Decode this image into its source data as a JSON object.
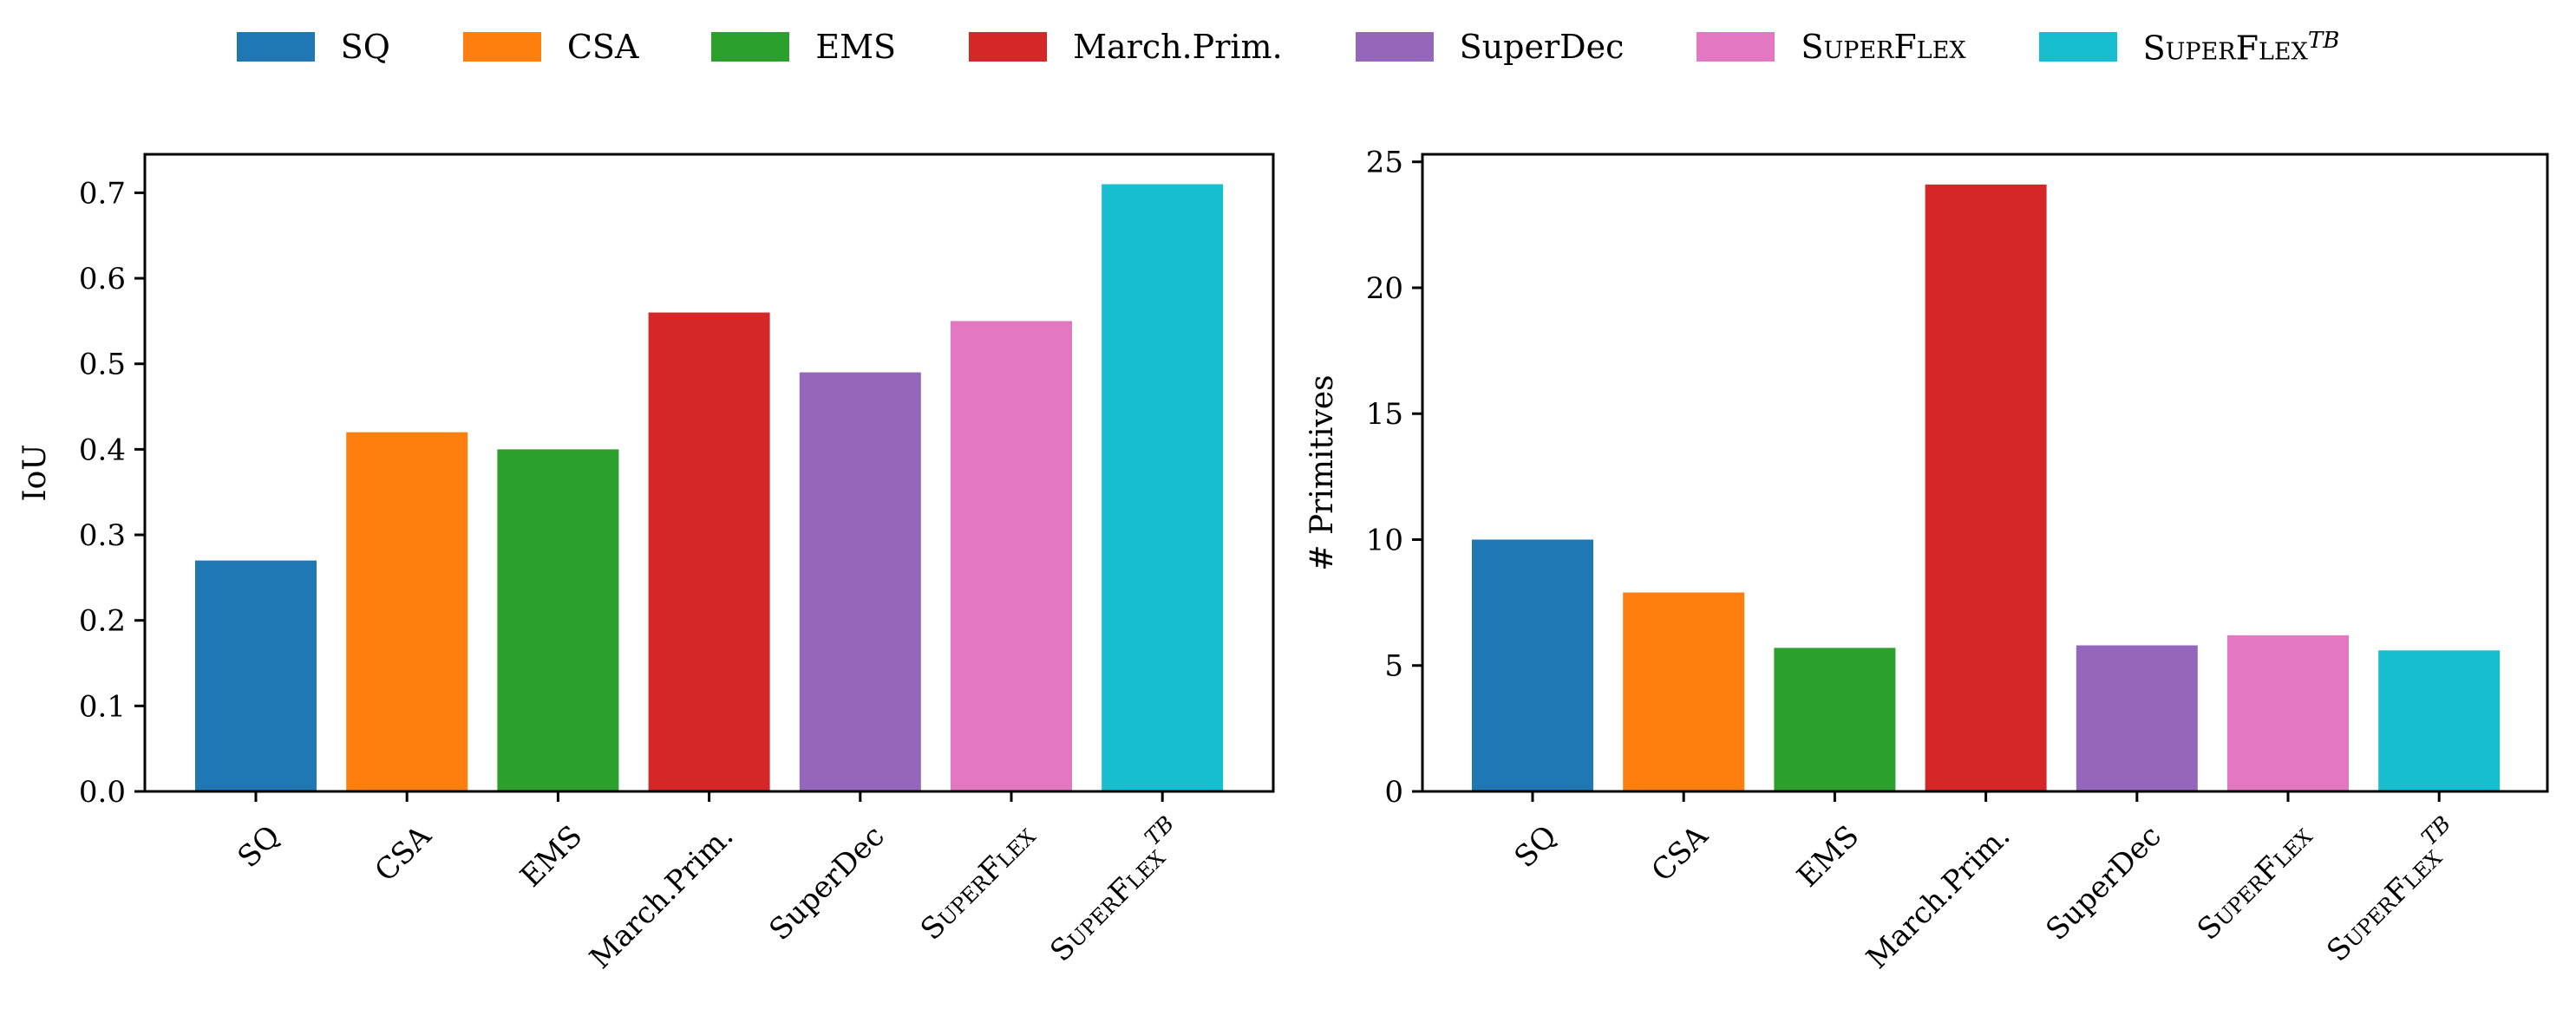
{
  "chart_data": [
    {
      "type": "bar",
      "categories": [
        "SQ",
        "CSA",
        "EMS",
        "March.Prim.",
        "SuperDec",
        "SuperFlex",
        "SuperFlex^TB"
      ],
      "values": [
        0.27,
        0.42,
        0.4,
        0.56,
        0.49,
        0.55,
        0.71
      ],
      "colors": [
        "#1f77b4",
        "#ff7f0e",
        "#2ca02c",
        "#d62728",
        "#9467bd",
        "#e377c2",
        "#17becf"
      ],
      "title": "",
      "xlabel": "",
      "ylabel": "IoU",
      "ylim": [
        0,
        0.745
      ],
      "yticks": [
        0.0,
        0.1,
        0.2,
        0.3,
        0.4,
        0.5,
        0.6,
        0.7
      ],
      "ytick_labels": [
        "0.0",
        "0.1",
        "0.2",
        "0.3",
        "0.4",
        "0.5",
        "0.6",
        "0.7"
      ]
    },
    {
      "type": "bar",
      "categories": [
        "SQ",
        "CSA",
        "EMS",
        "March.Prim.",
        "SuperDec",
        "SuperFlex",
        "SuperFlex^TB"
      ],
      "values": [
        10.0,
        7.9,
        5.7,
        24.1,
        5.8,
        6.2,
        5.6
      ],
      "colors": [
        "#1f77b4",
        "#ff7f0e",
        "#2ca02c",
        "#d62728",
        "#9467bd",
        "#e377c2",
        "#17becf"
      ],
      "title": "",
      "xlabel": "",
      "ylabel": "# Primitives",
      "ylim": [
        0,
        25.3
      ],
      "yticks": [
        0,
        5,
        10,
        15,
        20,
        25
      ],
      "ytick_labels": [
        "0",
        "5",
        "10",
        "15",
        "20",
        "25"
      ]
    }
  ],
  "legend": {
    "position": "top-center",
    "items": [
      {
        "label": "SQ",
        "color": "#1f77b4"
      },
      {
        "label": "CSA",
        "color": "#ff7f0e"
      },
      {
        "label": "EMS",
        "color": "#2ca02c"
      },
      {
        "label": "March.Prim.",
        "color": "#d62728"
      },
      {
        "label": "SuperDec",
        "color": "#9467bd"
      },
      {
        "label": "SuperFlex",
        "color": "#e377c2"
      },
      {
        "label": "SuperFlex^TB",
        "color": "#17becf"
      }
    ]
  }
}
